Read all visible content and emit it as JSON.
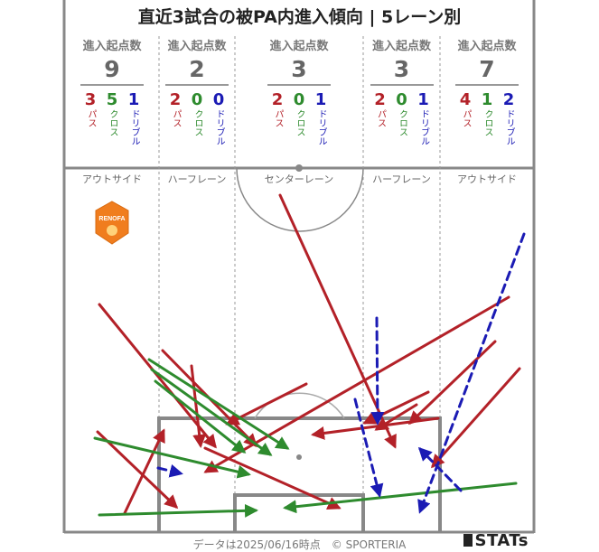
{
  "title": "直近3試合の被PA内進入傾向 | 5レーン別",
  "header_label": "進入起点数",
  "kind_labels": {
    "pass": "パス",
    "cross": "クロス",
    "dribble": "ドリブル"
  },
  "colors": {
    "pass": "#b32128",
    "cross": "#2e8b2e",
    "dribble": "#1b1bb4",
    "lines": "#888888"
  },
  "lanes": [
    {
      "name": "アウトサイド",
      "total": "9",
      "pass": "3",
      "cross": "5",
      "dribble": "1"
    },
    {
      "name": "ハーフレーン",
      "total": "2",
      "pass": "2",
      "cross": "0",
      "dribble": "0"
    },
    {
      "name": "センターレーン",
      "total": "3",
      "pass": "2",
      "cross": "0",
      "dribble": "1"
    },
    {
      "name": "ハーフレーン",
      "total": "3",
      "pass": "2",
      "cross": "0",
      "dribble": "1"
    },
    {
      "name": "アウトサイド",
      "total": "7",
      "pass": "4",
      "cross": "1",
      "dribble": "2"
    }
  ],
  "logo": {
    "text": "RENOFA",
    "icon": "renofa-emblem-icon",
    "color": "#f07d1e"
  },
  "footer": "データは2025/06/16時点　© SPORTERIA",
  "brand": "STATs",
  "chart_data": {
    "type": "pitch-arrow-map",
    "title": "直近3試合の被PA内進入傾向 | 5レーン別",
    "series": [
      {
        "name": "パス",
        "kind": "pass"
      },
      {
        "name": "クロス",
        "kind": "cross"
      },
      {
        "name": "ドリブル",
        "kind": "dribble"
      }
    ],
    "arrows": [
      {
        "kind": "pass",
        "from": [
          110,
          337
        ],
        "to": [
          238,
          494
        ]
      },
      {
        "kind": "pass",
        "from": [
          180,
          388
        ],
        "to": [
          283,
          493
        ]
      },
      {
        "kind": "pass",
        "from": [
          212,
          405
        ],
        "to": [
          222,
          493
        ]
      },
      {
        "kind": "pass",
        "from": [
          108,
          478
        ],
        "to": [
          195,
          561
        ]
      },
      {
        "kind": "pass",
        "from": [
          138,
          568
        ],
        "to": [
          181,
          477
        ]
      },
      {
        "kind": "pass",
        "from": [
          310,
          216
        ],
        "to": [
          437,
          494
        ]
      },
      {
        "kind": "pass",
        "from": [
          339,
          425
        ],
        "to": [
          252,
          469
        ]
      },
      {
        "kind": "pass",
        "from": [
          563,
          329
        ],
        "to": [
          228,
          522
        ]
      },
      {
        "kind": "pass",
        "from": [
          548,
          378
        ],
        "to": [
          454,
          468
        ]
      },
      {
        "kind": "pass",
        "from": [
          575,
          408
        ],
        "to": [
          479,
          516
        ]
      },
      {
        "kind": "pass",
        "from": [
          474,
          434
        ],
        "to": [
          404,
          468
        ]
      },
      {
        "kind": "pass",
        "from": [
          485,
          463
        ],
        "to": [
          347,
          481
        ]
      },
      {
        "kind": "pass",
        "from": [
          461,
          448
        ],
        "to": [
          417,
          475
        ]
      },
      {
        "kind": "pass",
        "from": [
          227,
          496
        ],
        "to": [
          375,
          562
        ]
      },
      {
        "kind": "cross",
        "from": [
          165,
          398
        ],
        "to": [
          318,
          496
        ]
      },
      {
        "kind": "cross",
        "from": [
          168,
          409
        ],
        "to": [
          299,
          503
        ]
      },
      {
        "kind": "cross",
        "from": [
          172,
          422
        ],
        "to": [
          270,
          500
        ]
      },
      {
        "kind": "cross",
        "from": [
          105,
          485
        ],
        "to": [
          275,
          525
        ]
      },
      {
        "kind": "cross",
        "from": [
          110,
          570
        ],
        "to": [
          283,
          565
        ]
      },
      {
        "kind": "cross",
        "from": [
          571,
          535
        ],
        "to": [
          316,
          562
        ]
      },
      {
        "kind": "dribble",
        "from": [
          580,
          259
        ],
        "to": [
          465,
          566
        ]
      },
      {
        "kind": "dribble",
        "from": [
          417,
          352
        ],
        "to": [
          418,
          468
        ]
      },
      {
        "kind": "dribble",
        "from": [
          393,
          442
        ],
        "to": [
          420,
          548
        ]
      },
      {
        "kind": "dribble",
        "from": [
          510,
          543
        ],
        "to": [
          465,
          497
        ]
      },
      {
        "kind": "dribble",
        "from": [
          175,
          518
        ],
        "to": [
          200,
          524
        ]
      }
    ]
  }
}
